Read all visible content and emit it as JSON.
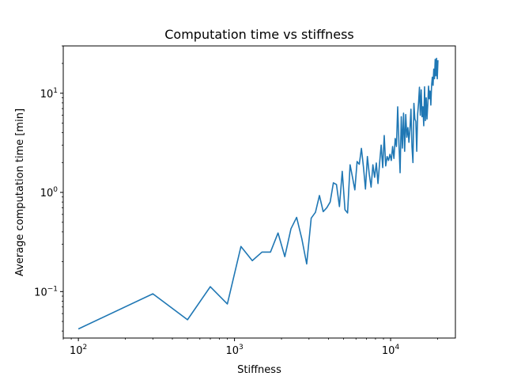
{
  "chart_data": {
    "type": "line",
    "title": "Computation time vs stiffness",
    "xlabel": "Stiffness",
    "ylabel": "Average computation time [min]",
    "xscale": "log",
    "yscale": "log",
    "xlim": [
      80,
      26000
    ],
    "ylim": [
      0.034,
      30
    ],
    "grid": false,
    "x_tick_labels": [
      {
        "base": "10",
        "exp": "2",
        "value": 100
      },
      {
        "base": "10",
        "exp": "3",
        "value": 1000
      },
      {
        "base": "10",
        "exp": "4",
        "value": 10000
      }
    ],
    "y_tick_labels": [
      {
        "base": "10",
        "exp": "−1",
        "value": 0.1
      },
      {
        "base": "10",
        "exp": "0",
        "value": 1
      },
      {
        "base": "10",
        "exp": "1",
        "value": 10
      }
    ],
    "line_color": "#1f77b4",
    "series": [
      {
        "x": [
          100,
          300,
          500,
          700,
          900,
          1100,
          1300,
          1500,
          1700,
          1900,
          2100,
          2300,
          2500,
          2700,
          2900,
          3100,
          3300,
          3500,
          3700,
          3900,
          4100,
          4300,
          4500,
          4700,
          4900,
          5100,
          5300,
          5500,
          5700,
          5900,
          6100,
          6300,
          6500,
          6700,
          6900,
          7100,
          7300,
          7500,
          7700,
          7900,
          8100,
          8300,
          8500,
          8700,
          8900,
          9100,
          9300,
          9500,
          9700,
          9900,
          10100,
          10300,
          10500,
          10700,
          10900,
          11100,
          11300,
          11500,
          11700,
          11900,
          12100,
          12300,
          12500,
          12700,
          12900,
          13100,
          13300,
          13500,
          13700,
          13900,
          14100,
          14300,
          14500,
          14700,
          14900,
          15100,
          15300,
          15500,
          15700,
          15900,
          16100,
          16300,
          16500,
          16700,
          16900,
          17100,
          17300,
          17500,
          17700,
          17900,
          18100,
          18300,
          18500,
          18700,
          18900,
          19100,
          19300,
          19500,
          19700,
          19900,
          20100
        ],
        "y": [
          0.042,
          0.095,
          0.052,
          0.112,
          0.075,
          0.285,
          0.205,
          0.25,
          0.25,
          0.39,
          0.225,
          0.43,
          0.56,
          0.34,
          0.19,
          0.55,
          0.63,
          0.93,
          0.64,
          0.7,
          0.8,
          1.25,
          1.2,
          0.72,
          1.63,
          0.67,
          0.62,
          1.9,
          1.42,
          1.06,
          2.05,
          1.92,
          2.78,
          1.8,
          1.08,
          2.3,
          1.52,
          1.13,
          1.9,
          1.42,
          1.98,
          1.23,
          1.98,
          3.0,
          1.78,
          3.75,
          1.85,
          2.3,
          2.1,
          2.42,
          2.1,
          2.9,
          2.2,
          3.5,
          2.9,
          7.3,
          3.2,
          1.58,
          5.8,
          2.8,
          6.3,
          2.6,
          6.1,
          3.6,
          4.5,
          3.2,
          4.4,
          6.9,
          2.9,
          2.0,
          7.9,
          5.5,
          5.2,
          2.6,
          6.2,
          8.0,
          11.5,
          6.0,
          10.8,
          5.8,
          7.3,
          4.7,
          11.6,
          5.3,
          9.0,
          5.5,
          7.7,
          11.8,
          8.8,
          10.5,
          7.6,
          12.0,
          14.5,
          12.0,
          17.5,
          14.0,
          22.0,
          15.0,
          22.5,
          14.0,
          21.5
        ]
      }
    ]
  }
}
